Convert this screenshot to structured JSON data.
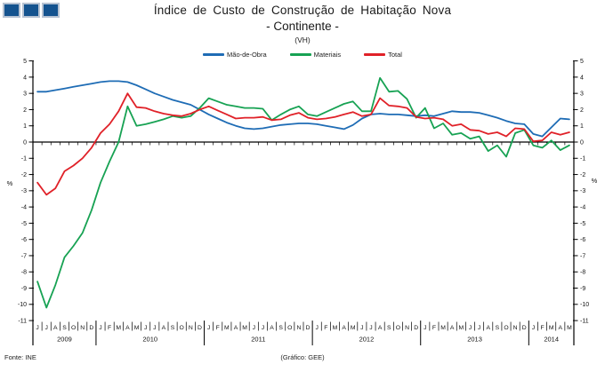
{
  "logo": {
    "square_count": 3,
    "fill_color": "#14538F",
    "border_color": "#B6C2D2"
  },
  "footer": {
    "source": "Fonte: INE",
    "credit": "(Gráfico:  GEE)"
  },
  "chart_data": {
    "type": "line",
    "title": "Índice de Custo de Construção de Habitação Nova",
    "subtitle": "- Continente -",
    "units_label": "(VH)",
    "ylabel": "%",
    "ylim": [
      -11,
      5
    ],
    "ytick_step": 1,
    "grid": false,
    "legend_position": "top",
    "x_months": [
      "J",
      "J",
      "A",
      "S",
      "O",
      "N",
      "D",
      "J",
      "F",
      "M",
      "A",
      "M",
      "J",
      "J",
      "A",
      "S",
      "O",
      "N",
      "D",
      "J",
      "F",
      "M",
      "A",
      "M",
      "J",
      "J",
      "A",
      "S",
      "O",
      "N",
      "D",
      "J",
      "F",
      "M",
      "A",
      "M",
      "J",
      "J",
      "A",
      "S",
      "O",
      "N",
      "D",
      "J",
      "F",
      "M",
      "A",
      "M",
      "J",
      "J",
      "A",
      "S",
      "O",
      "N",
      "D",
      "J",
      "F",
      "M",
      "A",
      "M"
    ],
    "x_years": [
      {
        "label": "2009",
        "months": 7
      },
      {
        "label": "2010",
        "months": 12
      },
      {
        "label": "2011",
        "months": 12
      },
      {
        "label": "2012",
        "months": 12
      },
      {
        "label": "2013",
        "months": 12
      },
      {
        "label": "2014",
        "months": 5
      }
    ],
    "series": [
      {
        "name": "Mão-de-Obra",
        "color": "#1E6CB5",
        "values": [
          3.1,
          3.1,
          3.2,
          3.3,
          3.4,
          3.5,
          3.6,
          3.7,
          3.75,
          3.75,
          3.7,
          3.5,
          3.25,
          3.0,
          2.8,
          2.6,
          2.45,
          2.3,
          2.0,
          1.7,
          1.45,
          1.2,
          1.0,
          0.85,
          0.8,
          0.85,
          0.95,
          1.05,
          1.1,
          1.15,
          1.15,
          1.1,
          1.0,
          0.9,
          0.8,
          1.05,
          1.45,
          1.7,
          1.75,
          1.7,
          1.7,
          1.65,
          1.6,
          1.65,
          1.6,
          1.75,
          1.9,
          1.85,
          1.85,
          1.8,
          1.65,
          1.5,
          1.3,
          1.15,
          1.1,
          0.5,
          0.35,
          0.9,
          1.45,
          1.4
        ]
      },
      {
        "name": "Materiais",
        "color": "#17A253",
        "values": [
          -8.6,
          -10.2,
          -8.8,
          -7.1,
          -6.4,
          -5.6,
          -4.2,
          -2.5,
          -1.2,
          0.0,
          2.2,
          1.0,
          1.1,
          1.25,
          1.4,
          1.6,
          1.5,
          1.6,
          2.1,
          2.7,
          2.5,
          2.3,
          2.2,
          2.1,
          2.1,
          2.05,
          1.35,
          1.7,
          2.0,
          2.2,
          1.7,
          1.6,
          1.85,
          2.1,
          2.35,
          2.5,
          1.9,
          1.9,
          3.95,
          3.1,
          3.15,
          2.65,
          1.5,
          2.1,
          0.85,
          1.15,
          0.45,
          0.55,
          0.2,
          0.35,
          -0.55,
          -0.2,
          -0.9,
          0.55,
          0.75,
          -0.2,
          -0.35,
          0.1,
          -0.5,
          -0.2
        ]
      },
      {
        "name": "Total",
        "color": "#E02128",
        "values": [
          -2.5,
          -3.25,
          -2.85,
          -1.8,
          -1.45,
          -1.0,
          -0.35,
          0.55,
          1.1,
          1.9,
          3.0,
          2.15,
          2.1,
          1.9,
          1.75,
          1.65,
          1.6,
          1.75,
          2.0,
          2.2,
          1.95,
          1.7,
          1.45,
          1.5,
          1.5,
          1.55,
          1.35,
          1.4,
          1.65,
          1.8,
          1.5,
          1.4,
          1.45,
          1.55,
          1.7,
          1.85,
          1.6,
          1.7,
          2.7,
          2.25,
          2.2,
          2.1,
          1.55,
          1.45,
          1.5,
          1.4,
          1.0,
          1.1,
          0.75,
          0.7,
          0.5,
          0.6,
          0.35,
          0.85,
          0.8,
          0.05,
          0.1,
          0.6,
          0.45,
          0.6
        ]
      }
    ]
  }
}
